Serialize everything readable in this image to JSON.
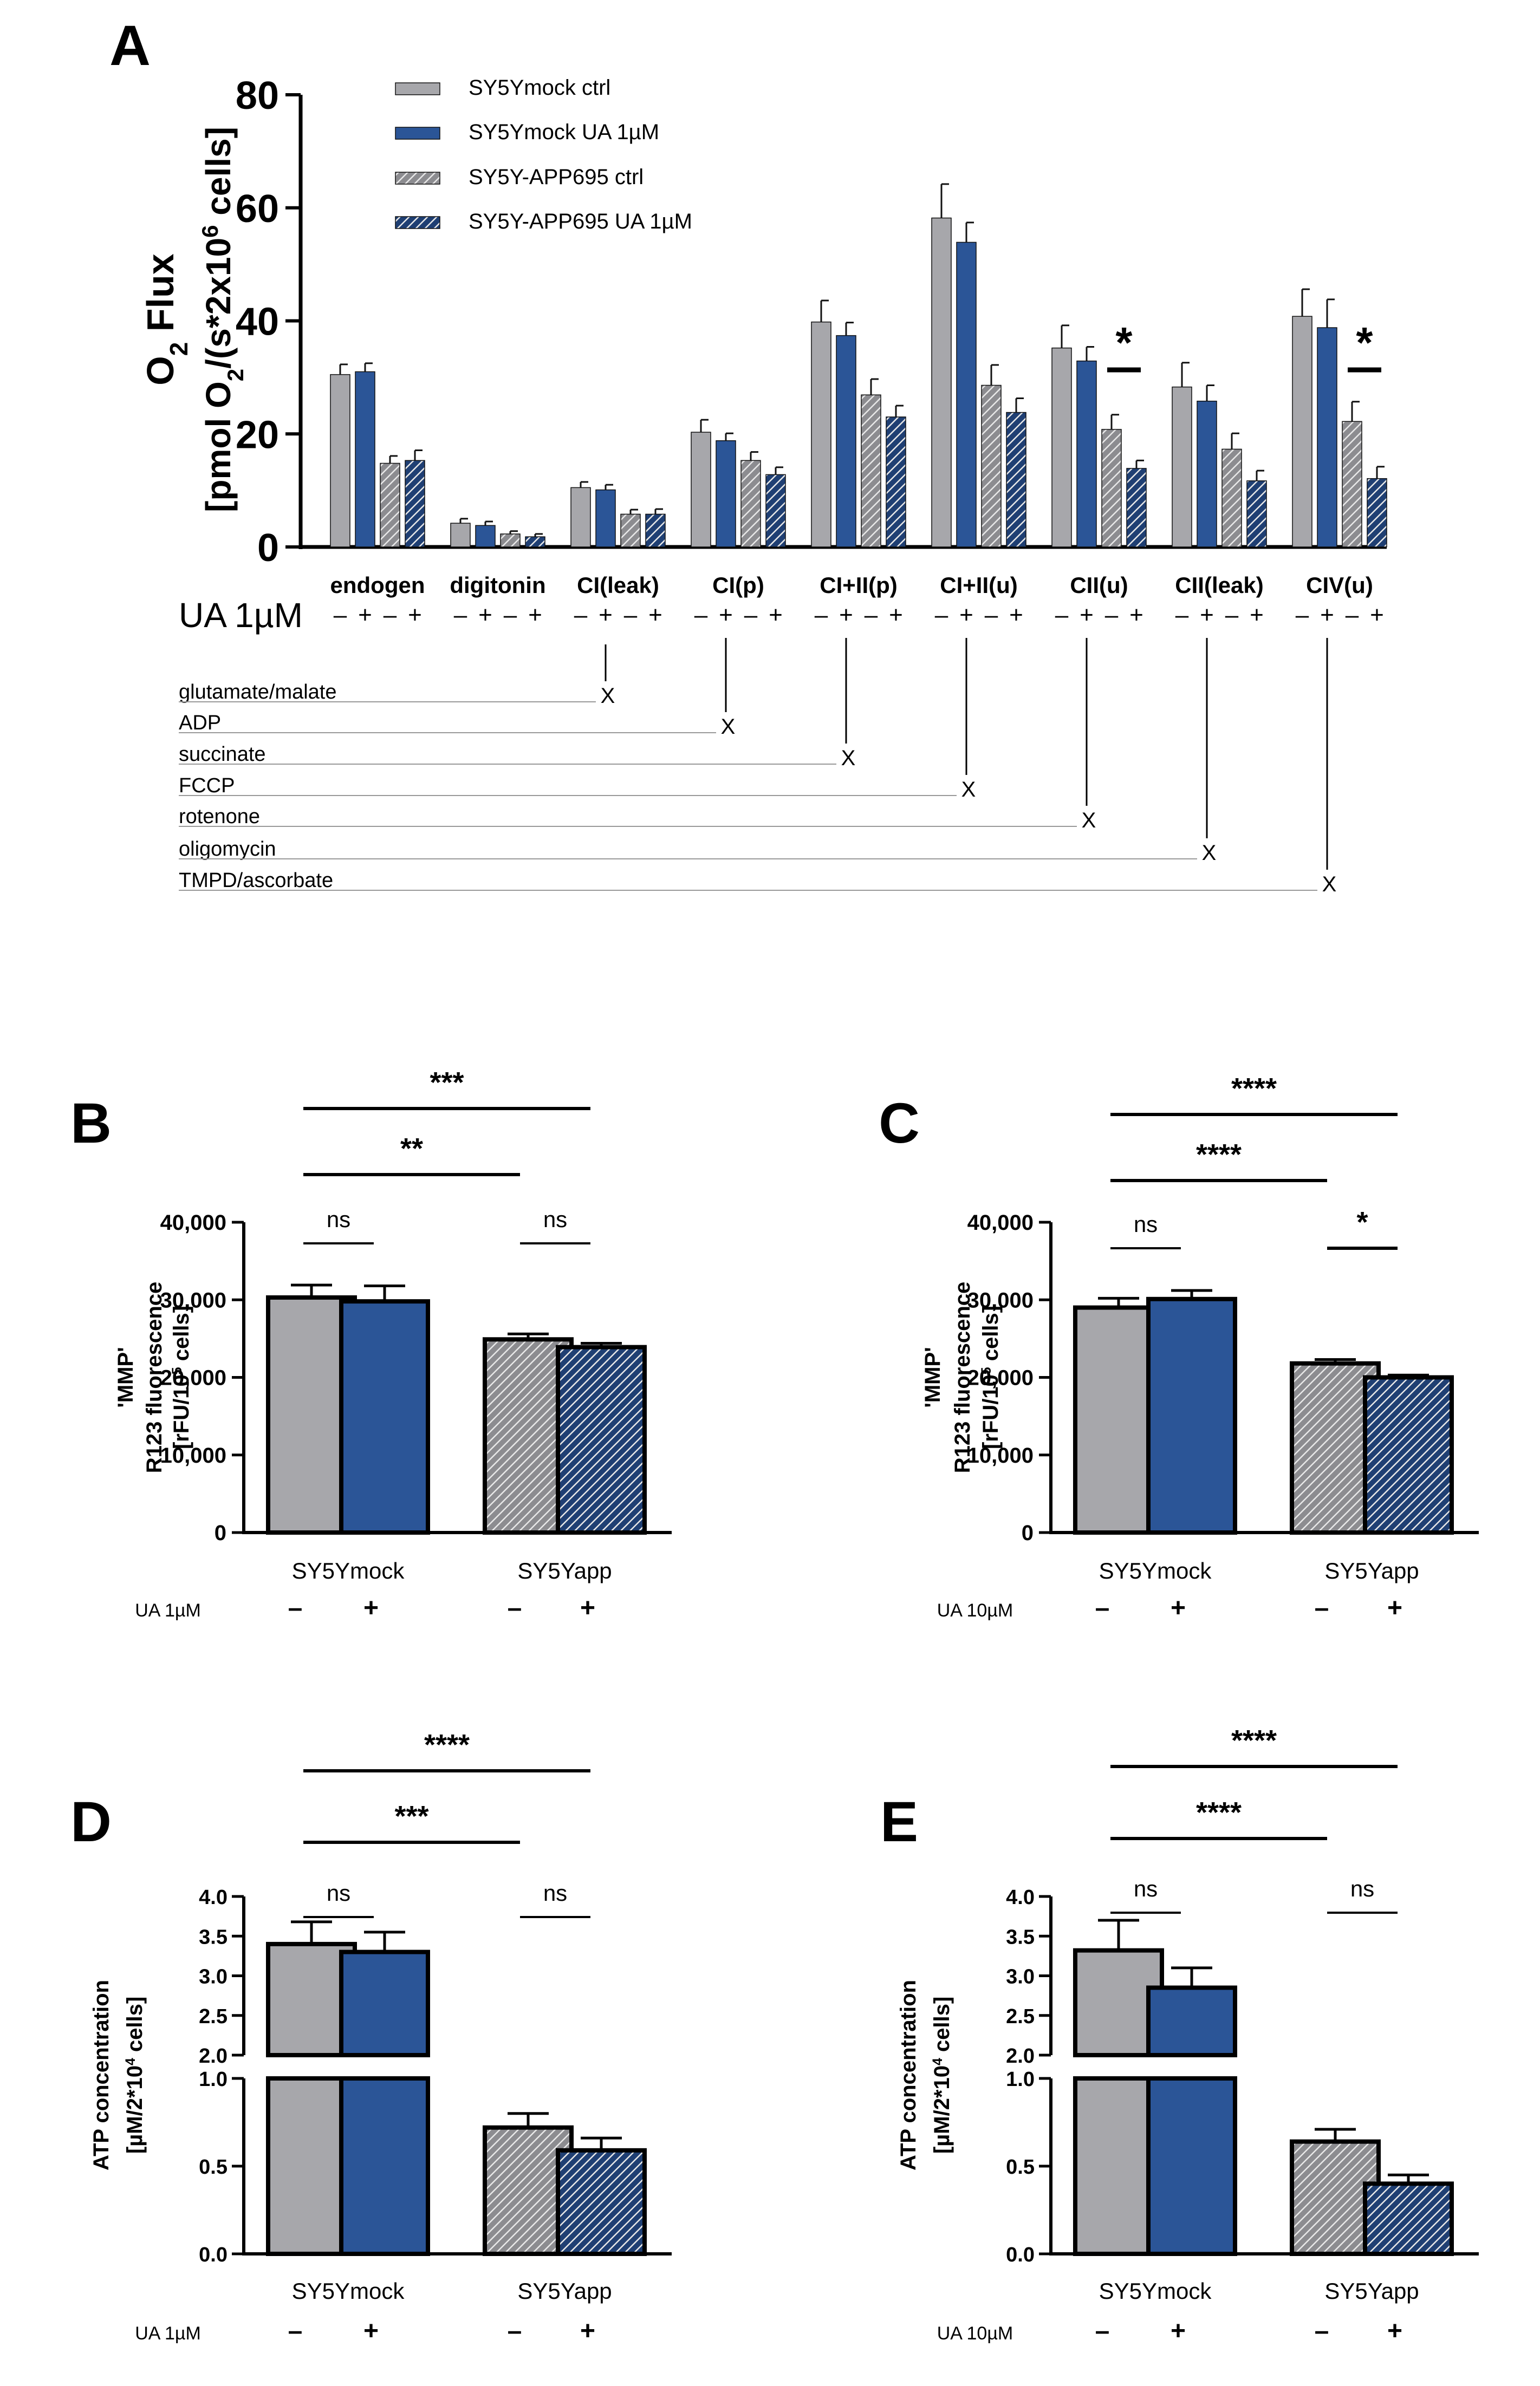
{
  "colors": {
    "ctrl": "#a7a7ab",
    "ua": "#2b5597",
    "app_ctrl": "#8c8c90",
    "app_ua": "#1f3f73",
    "stripe": "#e8e8e8"
  },
  "series_styles": [
    {
      "name": "SY5Ymock ctrl",
      "fill": "solid",
      "color_key": "ctrl"
    },
    {
      "name": "SY5Ymock UA 1µM",
      "fill": "solid",
      "color_key": "ua"
    },
    {
      "name": "SY5Y-APP695 ctrl",
      "fill": "hatched",
      "color_key": "app_ctrl"
    },
    {
      "name": "SY5Y-APP695 UA 1µM",
      "fill": "hatched",
      "color_key": "app_ua"
    }
  ],
  "chart_data": [
    {
      "panel": "A",
      "type": "bar",
      "ylabel_line1": "O2 Flux",
      "ylabel_line2": "[pmol O2/(s*2x106 cells]",
      "yticks": [
        0,
        20,
        40,
        60,
        80
      ],
      "ylim": [
        0,
        80
      ],
      "legend_placement": "top-left",
      "categories": [
        "endogen",
        "digitonin",
        "CI(leak)",
        "CI(p)",
        "CI+II(p)",
        "CI+II(u)",
        "CII(u)",
        "CII(leak)",
        "CIV(u)"
      ],
      "series": [
        {
          "name": "SY5Ymock ctrl",
          "values": [
            30.5,
            4.2,
            10.5,
            20.3,
            39.8,
            58.2,
            35.2,
            28.3,
            40.8
          ],
          "errors": [
            1.8,
            0.8,
            1.0,
            2.2,
            3.8,
            6.0,
            4.0,
            4.3,
            4.8
          ]
        },
        {
          "name": "SY5Ymock UA 1µM",
          "values": [
            31.0,
            3.8,
            10.1,
            18.8,
            37.4,
            53.9,
            32.9,
            25.8,
            38.8
          ],
          "errors": [
            1.5,
            0.7,
            0.9,
            1.3,
            2.3,
            3.5,
            2.5,
            2.8,
            5.0
          ]
        },
        {
          "name": "SY5Y-APP695 ctrl",
          "values": [
            14.8,
            2.3,
            5.8,
            15.3,
            26.9,
            28.6,
            20.8,
            17.3,
            22.2
          ],
          "errors": [
            1.3,
            0.5,
            0.8,
            1.5,
            2.8,
            3.6,
            2.6,
            2.8,
            3.5
          ]
        },
        {
          "name": "SY5Y-APP695 UA 1µM",
          "values": [
            15.3,
            1.8,
            5.8,
            12.8,
            23.0,
            23.8,
            13.9,
            11.7,
            12.1
          ],
          "errors": [
            1.8,
            0.5,
            0.9,
            1.3,
            2.0,
            2.5,
            1.4,
            1.8,
            2.1
          ]
        }
      ],
      "significance": [
        {
          "category": "CII(u)",
          "label": "*"
        },
        {
          "category": "CIV(u)",
          "label": "*"
        }
      ],
      "treatment_label": "UA 1µM",
      "treatment_signs": [
        "–",
        "+",
        "–",
        "+"
      ],
      "protocol": [
        {
          "label": "glutamate/malate",
          "x_mark": "X",
          "added_before": "CI(leak)"
        },
        {
          "label": "ADP",
          "x_mark": "X",
          "added_before": "CI(p)"
        },
        {
          "label": "succinate",
          "x_mark": "X",
          "added_before": "CI+II(p)"
        },
        {
          "label": "FCCP",
          "x_mark": "X",
          "added_before": "CI+II(u)"
        },
        {
          "label": "rotenone",
          "x_mark": "X",
          "added_before": "CII(u)"
        },
        {
          "label": "oligomycin",
          "x_mark": "X",
          "added_before": "CII(leak)"
        },
        {
          "label": "TMPD/ascorbate",
          "x_mark": "X",
          "added_before": "CIV(u)"
        }
      ]
    },
    {
      "panel": "B",
      "type": "bar",
      "ylabel_line1": "'MMP'",
      "ylabel_line2": "R123 fluorescence",
      "ylabel_line3": "[rFU/105 cells]",
      "ylim": [
        0,
        40000
      ],
      "yticks": [
        "0",
        "10,000",
        "20,000",
        "30,000",
        "40,000"
      ],
      "groups": [
        "SY5Ymock",
        "SY5Yapp"
      ],
      "treatment_label": "UA 1µM",
      "treatment_signs": [
        "–",
        "+",
        "–",
        "+"
      ],
      "values": [
        30300,
        29800,
        24900,
        23900
      ],
      "errors": [
        1600,
        2000,
        700,
        500
      ],
      "significance": [
        {
          "from": 0,
          "to": 1,
          "label": "ns"
        },
        {
          "from": 2,
          "to": 3,
          "label": "ns"
        },
        {
          "from": 0,
          "to": 2,
          "label": "**"
        },
        {
          "from": 0,
          "to": 3,
          "label": "***"
        }
      ]
    },
    {
      "panel": "C",
      "type": "bar",
      "ylabel_line1": "'MMP'",
      "ylabel_line2": "R123 fluorescence",
      "ylabel_line3": "[rFU/105 cells]",
      "ylim": [
        0,
        40000
      ],
      "yticks": [
        "0",
        "10,000",
        "20,000",
        "30,000",
        "40,000"
      ],
      "groups": [
        "SY5Ymock",
        "SY5Yapp"
      ],
      "treatment_label": "UA 10µM",
      "treatment_signs": [
        "–",
        "+",
        "–",
        "+"
      ],
      "values": [
        29000,
        30100,
        21800,
        20000
      ],
      "errors": [
        1200,
        1100,
        500,
        300
      ],
      "significance": [
        {
          "from": 0,
          "to": 1,
          "label": "ns"
        },
        {
          "from": 2,
          "to": 3,
          "label": "*"
        },
        {
          "from": 0,
          "to": 2,
          "label": "****"
        },
        {
          "from": 0,
          "to": 3,
          "label": "****"
        }
      ]
    },
    {
      "panel": "D",
      "type": "bar",
      "ylabel_line1": "ATP concentration",
      "ylabel_line2": "[µM/2*104 cells]",
      "ylim_upper": [
        2.0,
        4.0
      ],
      "ylim_lower": [
        0.0,
        1.0
      ],
      "yticks_upper": [
        "2.0",
        "2.5",
        "3.0",
        "3.5",
        "4.0"
      ],
      "yticks_lower": [
        "0.0",
        "0.5",
        "1.0"
      ],
      "groups": [
        "SY5Ymock",
        "SY5Yapp"
      ],
      "treatment_label": "UA 1µM",
      "treatment_signs": [
        "–",
        "+",
        "–",
        "+"
      ],
      "values": [
        3.4,
        3.3,
        0.72,
        0.59
      ],
      "errors": [
        0.28,
        0.25,
        0.08,
        0.07
      ],
      "significance": [
        {
          "from": 0,
          "to": 1,
          "label": "ns"
        },
        {
          "from": 2,
          "to": 3,
          "label": "ns"
        },
        {
          "from": 0,
          "to": 2,
          "label": "***"
        },
        {
          "from": 0,
          "to": 3,
          "label": "****"
        }
      ]
    },
    {
      "panel": "E",
      "type": "bar",
      "ylabel_line1": "ATP concentration",
      "ylabel_line2": "[µM/2*104 cells]",
      "ylim_upper": [
        2.0,
        4.0
      ],
      "ylim_lower": [
        0.0,
        1.0
      ],
      "yticks_upper": [
        "2.0",
        "2.5",
        "3.0",
        "3.5",
        "4.0"
      ],
      "yticks_lower": [
        "0.0",
        "0.5",
        "1.0"
      ],
      "groups": [
        "SY5Ymock",
        "SY5Yapp"
      ],
      "treatment_label": "UA 10µM",
      "treatment_signs": [
        "–",
        "+",
        "–",
        "+"
      ],
      "values": [
        3.32,
        2.85,
        0.64,
        0.4
      ],
      "errors": [
        0.38,
        0.25,
        0.07,
        0.05
      ],
      "significance": [
        {
          "from": 0,
          "to": 1,
          "label": "ns"
        },
        {
          "from": 2,
          "to": 3,
          "label": "ns"
        },
        {
          "from": 0,
          "to": 2,
          "label": "****"
        },
        {
          "from": 0,
          "to": 3,
          "label": "****"
        }
      ]
    }
  ]
}
